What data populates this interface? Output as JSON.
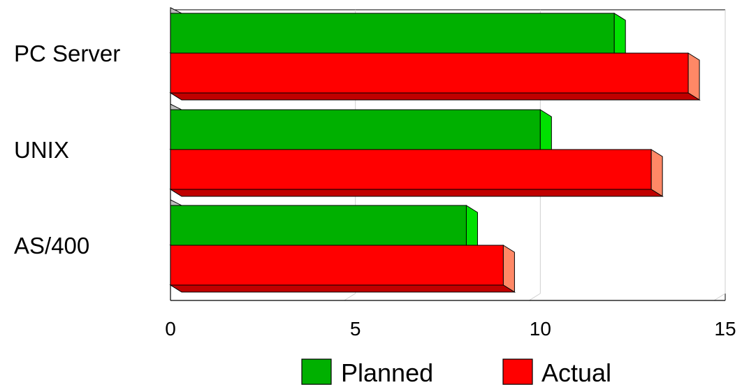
{
  "chart_data": {
    "type": "bar",
    "orientation": "horizontal",
    "three_d": true,
    "categories": [
      "PC Server",
      "UNIX",
      "AS/400"
    ],
    "series": [
      {
        "name": "Planned",
        "values": [
          12,
          10,
          8
        ],
        "color": "#00b000",
        "side_color": "#00e000",
        "top_color": "#008000"
      },
      {
        "name": "Actual",
        "values": [
          14,
          13,
          9
        ],
        "color": "#ff0000",
        "side_color": "#ff8866",
        "top_color": "#c00000"
      }
    ],
    "x_ticks": [
      "0",
      "5",
      "10",
      "15"
    ],
    "xlim": [
      0,
      15
    ],
    "grid": true,
    "legend_position": "bottom",
    "title": "",
    "xlabel": "",
    "ylabel": ""
  }
}
